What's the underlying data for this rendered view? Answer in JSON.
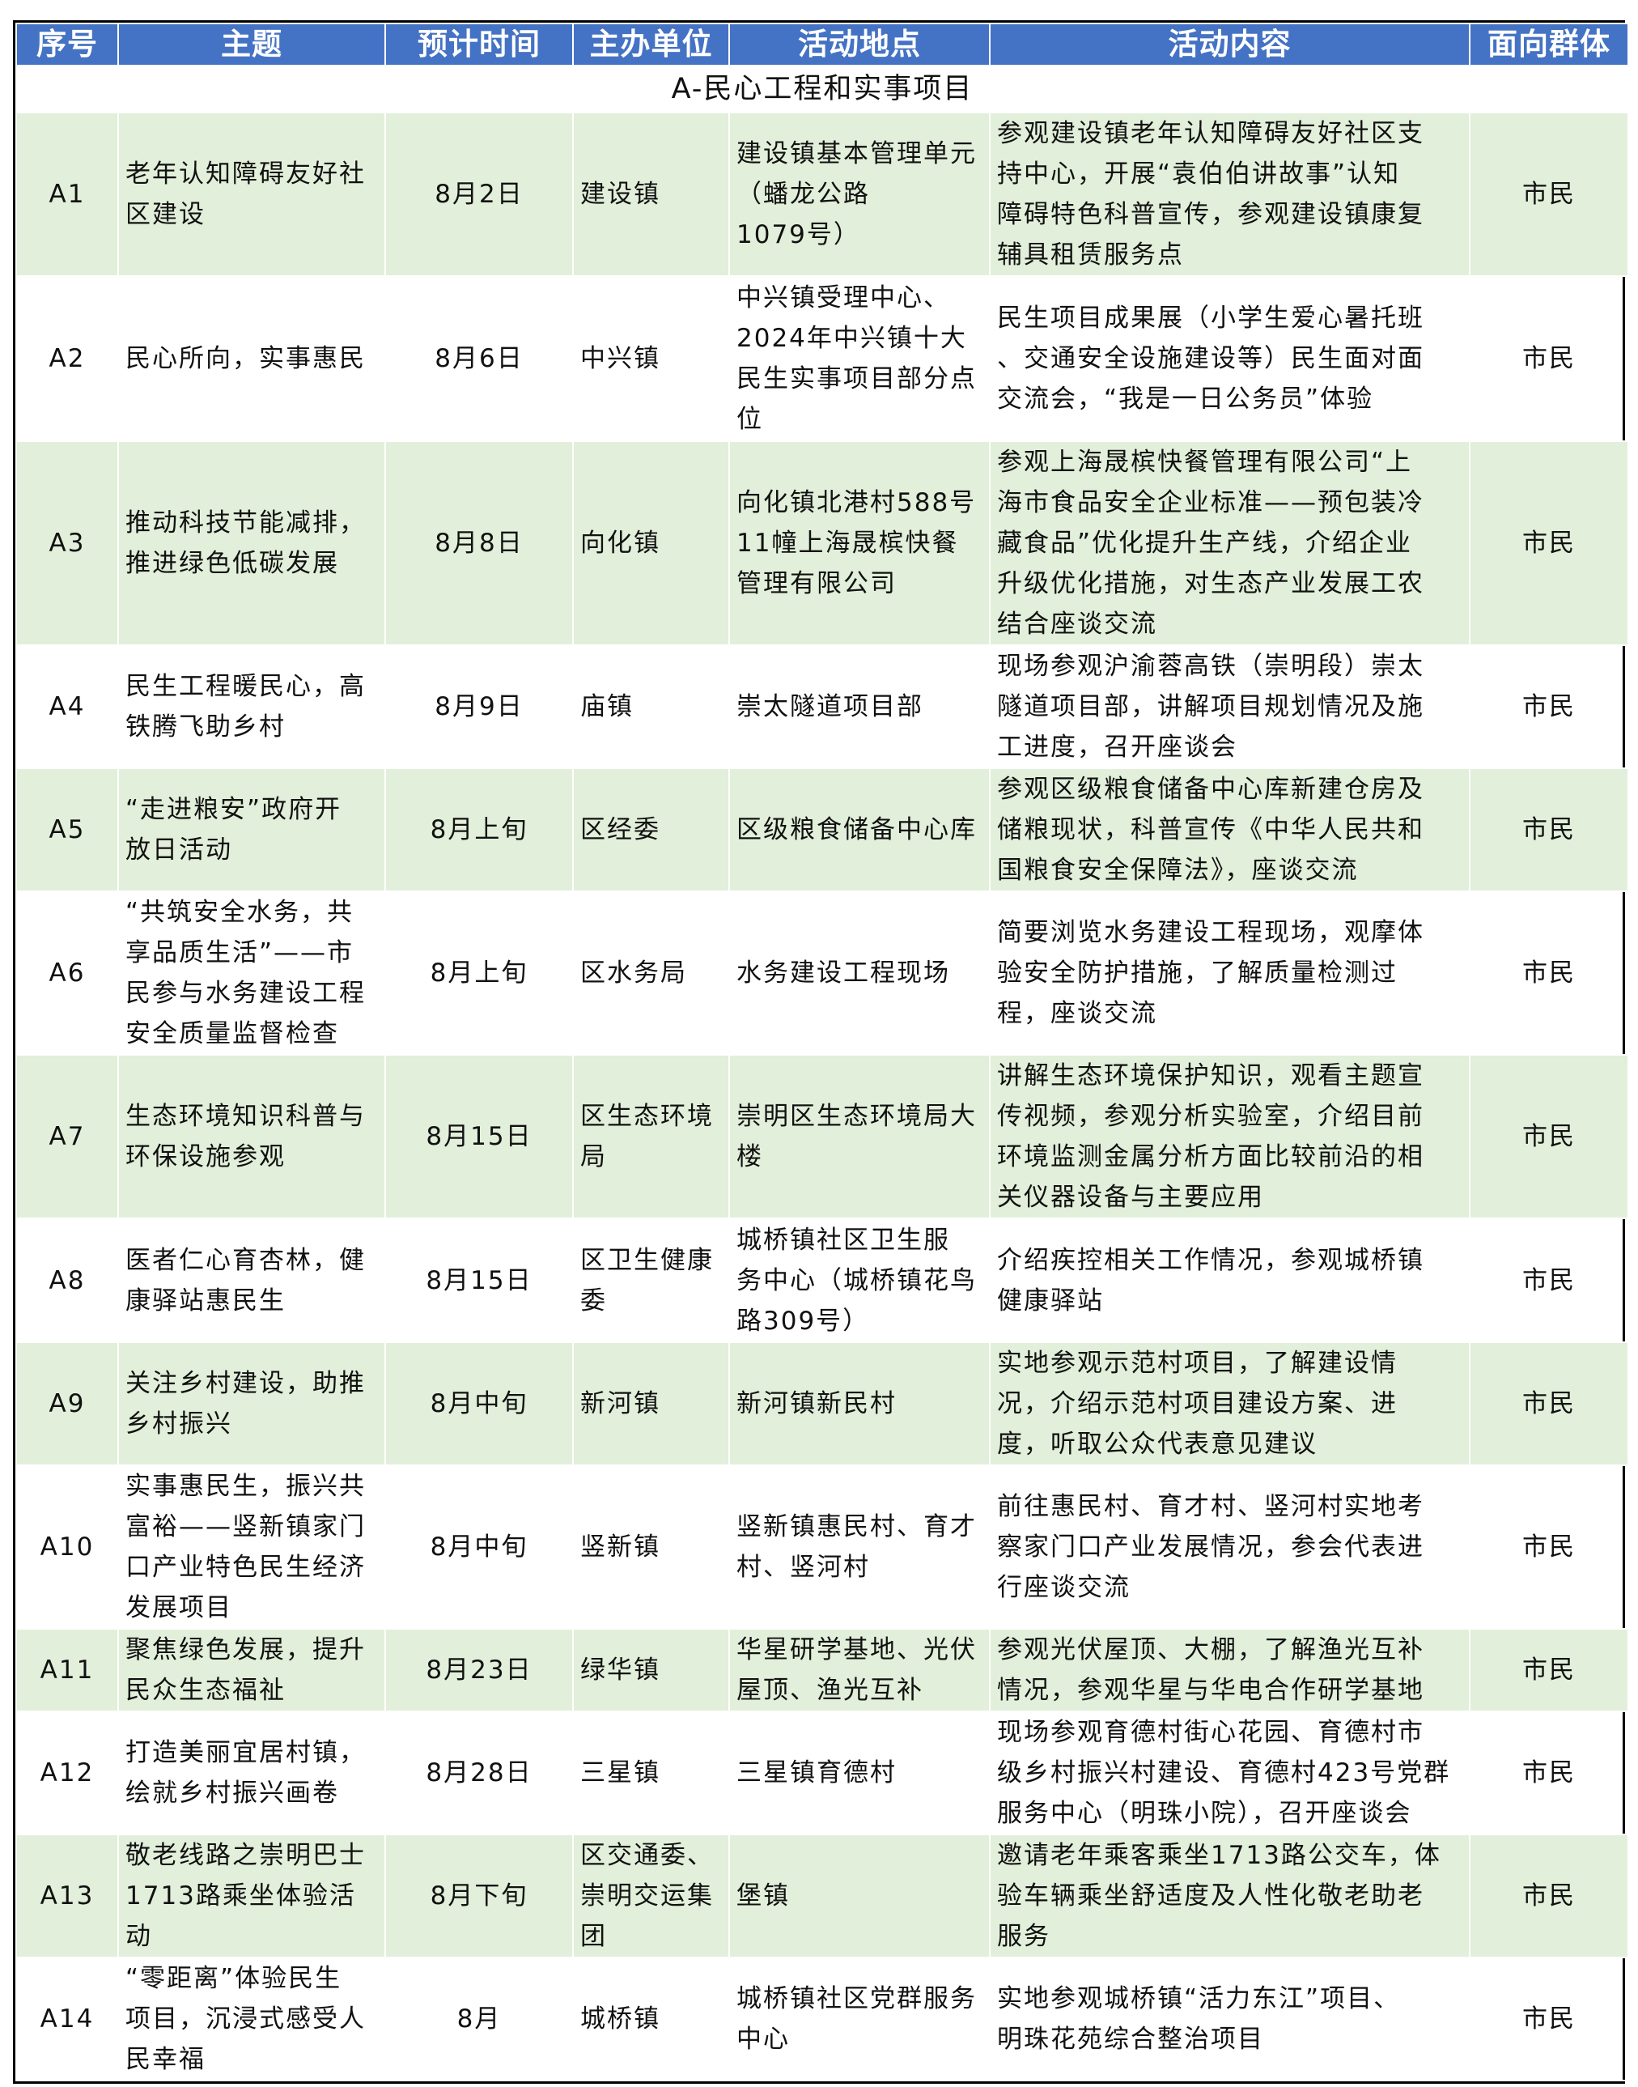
{
  "colors": {
    "header_bg": "#4472C4",
    "header_text": "#FFFFFF",
    "row_alt": "#E2EFDA"
  },
  "headers": [
    "序号",
    "主题",
    "预计时间",
    "主办单位",
    "活动地点",
    "活动内容",
    "面向群体"
  ],
  "section": "A-民心工程和实事项目",
  "rows": [
    {
      "id": "A1",
      "theme": "老年认知障碍友好社\n区建设",
      "time": "8月2日",
      "org": "建设镇",
      "place": "建设镇基本管理单元\n（蟠龙公路\n1079号）",
      "content": "参观建设镇老年认知障碍友好社区支\n持中心，开展“袁伯伯讲故事”认知\n障碍特色科普宣传，参观建设镇康复\n辅具租赁服务点",
      "audience": "市民"
    },
    {
      "id": "A2",
      "theme": "民心所向，实事惠民",
      "time": "8月6日",
      "org": "中兴镇",
      "place": "中兴镇受理中心、\n2024年中兴镇十大\n民生实事项目部分点\n位",
      "content": "民生项目成果展（小学生爱心暑托班\n、交通安全设施建设等）民生面对面\n交流会，“我是一日公务员”体验",
      "audience": "市民"
    },
    {
      "id": "A3",
      "theme": "推动科技节能减排，\n推进绿色低碳发展",
      "time": "8月8日",
      "org": "向化镇",
      "place": "向化镇北港村588号\n11幢上海晟槟快餐\n管理有限公司",
      "content": "参观上海晟槟快餐管理有限公司“上\n海市食品安全企业标准——预包装冷\n藏食品”优化提升生产线，介绍企业\n升级优化措施，对生态产业发展工农\n结合座谈交流",
      "audience": "市民"
    },
    {
      "id": "A4",
      "theme": "民生工程暖民心，高\n铁腾飞助乡村",
      "time": "8月9日",
      "org": "庙镇",
      "place": "崇太隧道项目部",
      "content": "现场参观沪渝蓉高铁（崇明段）崇太\n隧道项目部，讲解项目规划情况及施\n工进度，召开座谈会",
      "audience": "市民"
    },
    {
      "id": "A5",
      "theme": "“走进粮安”政府开\n放日活动",
      "time": "8月上旬",
      "org": "区经委",
      "place": "区级粮食储备中心库",
      "content": "参观区级粮食储备中心库新建仓房及\n储粮现状，科普宣传《中华人民共和\n国粮食安全保障法》，座谈交流",
      "audience": "市民"
    },
    {
      "id": "A6",
      "theme": "“共筑安全水务，共\n享品质生活”——市\n民参与水务建设工程\n安全质量监督检查",
      "time": "8月上旬",
      "org": "区水务局",
      "place": "水务建设工程现场",
      "content": "简要浏览水务建设工程现场，观摩体\n验安全防护措施，了解质量检测过\n程，座谈交流",
      "audience": "市民"
    },
    {
      "id": "A7",
      "theme": "生态环境知识科普与\n环保设施参观",
      "time": "8月15日",
      "org": "区生态环境\n局",
      "place": "崇明区生态环境局大\n楼",
      "content": "讲解生态环境保护知识，观看主题宣\n传视频，参观分析实验室，介绍目前\n环境监测金属分析方面比较前沿的相\n关仪器设备与主要应用",
      "audience": "市民"
    },
    {
      "id": "A8",
      "theme": "医者仁心育杏林，健\n康驿站惠民生",
      "time": "8月15日",
      "org": "区卫生健康\n委",
      "place": "城桥镇社区卫生服\n务中心（城桥镇花鸟\n路309号）",
      "content": "介绍疾控相关工作情况，参观城桥镇\n健康驿站",
      "audience": "市民"
    },
    {
      "id": "A9",
      "theme": "关注乡村建设，助推\n乡村振兴",
      "time": "8月中旬",
      "org": "新河镇",
      "place": "新河镇新民村",
      "content": "实地参观示范村项目，了解建设情\n况，介绍示范村项目建设方案、进\n度，听取公众代表意见建议",
      "audience": "市民"
    },
    {
      "id": "A10",
      "theme": "实事惠民生，振兴共\n富裕——竖新镇家门\n口产业特色民生经济\n发展项目",
      "time": "8月中旬",
      "org": "竖新镇",
      "place": "竖新镇惠民村、育才\n村、竖河村",
      "content": "前往惠民村、育才村、竖河村实地考\n察家门口产业发展情况，参会代表进\n行座谈交流",
      "audience": "市民"
    },
    {
      "id": "A11",
      "theme": "聚焦绿色发展，提升\n民众生态福祉",
      "time": "8月23日",
      "org": "绿华镇",
      "place": "华星研学基地、光伏\n屋顶、渔光互补",
      "content": "参观光伏屋顶、大棚，了解渔光互补\n情况，参观华星与华电合作研学基地",
      "audience": "市民"
    },
    {
      "id": "A12",
      "theme": "打造美丽宜居村镇，\n绘就乡村振兴画卷",
      "time": "8月28日",
      "org": "三星镇",
      "place": "三星镇育德村",
      "content": "现场参观育德村街心花园、育德村市\n级乡村振兴村建设、育德村423号党群\n服务中心（明珠小院），召开座谈会",
      "audience": "市民"
    },
    {
      "id": "A13",
      "theme": "敬老线路之崇明巴士\n1713路乘坐体验活\n动",
      "time": "8月下旬",
      "org": "区交通委、\n崇明交运集\n团",
      "place": "堡镇",
      "content": "邀请老年乘客乘坐1713路公交车，体\n验车辆乘坐舒适度及人性化敬老助老\n服务",
      "audience": "市民"
    },
    {
      "id": "A14",
      "theme": "“零距离”体验民生\n项目，沉浸式感受人\n民幸福",
      "time": "8月",
      "org": "城桥镇",
      "place": "城桥镇社区党群服务\n中心",
      "content": "实地参观城桥镇“活力东江”项目、\n明珠花苑综合整治项目",
      "audience": "市民"
    }
  ]
}
